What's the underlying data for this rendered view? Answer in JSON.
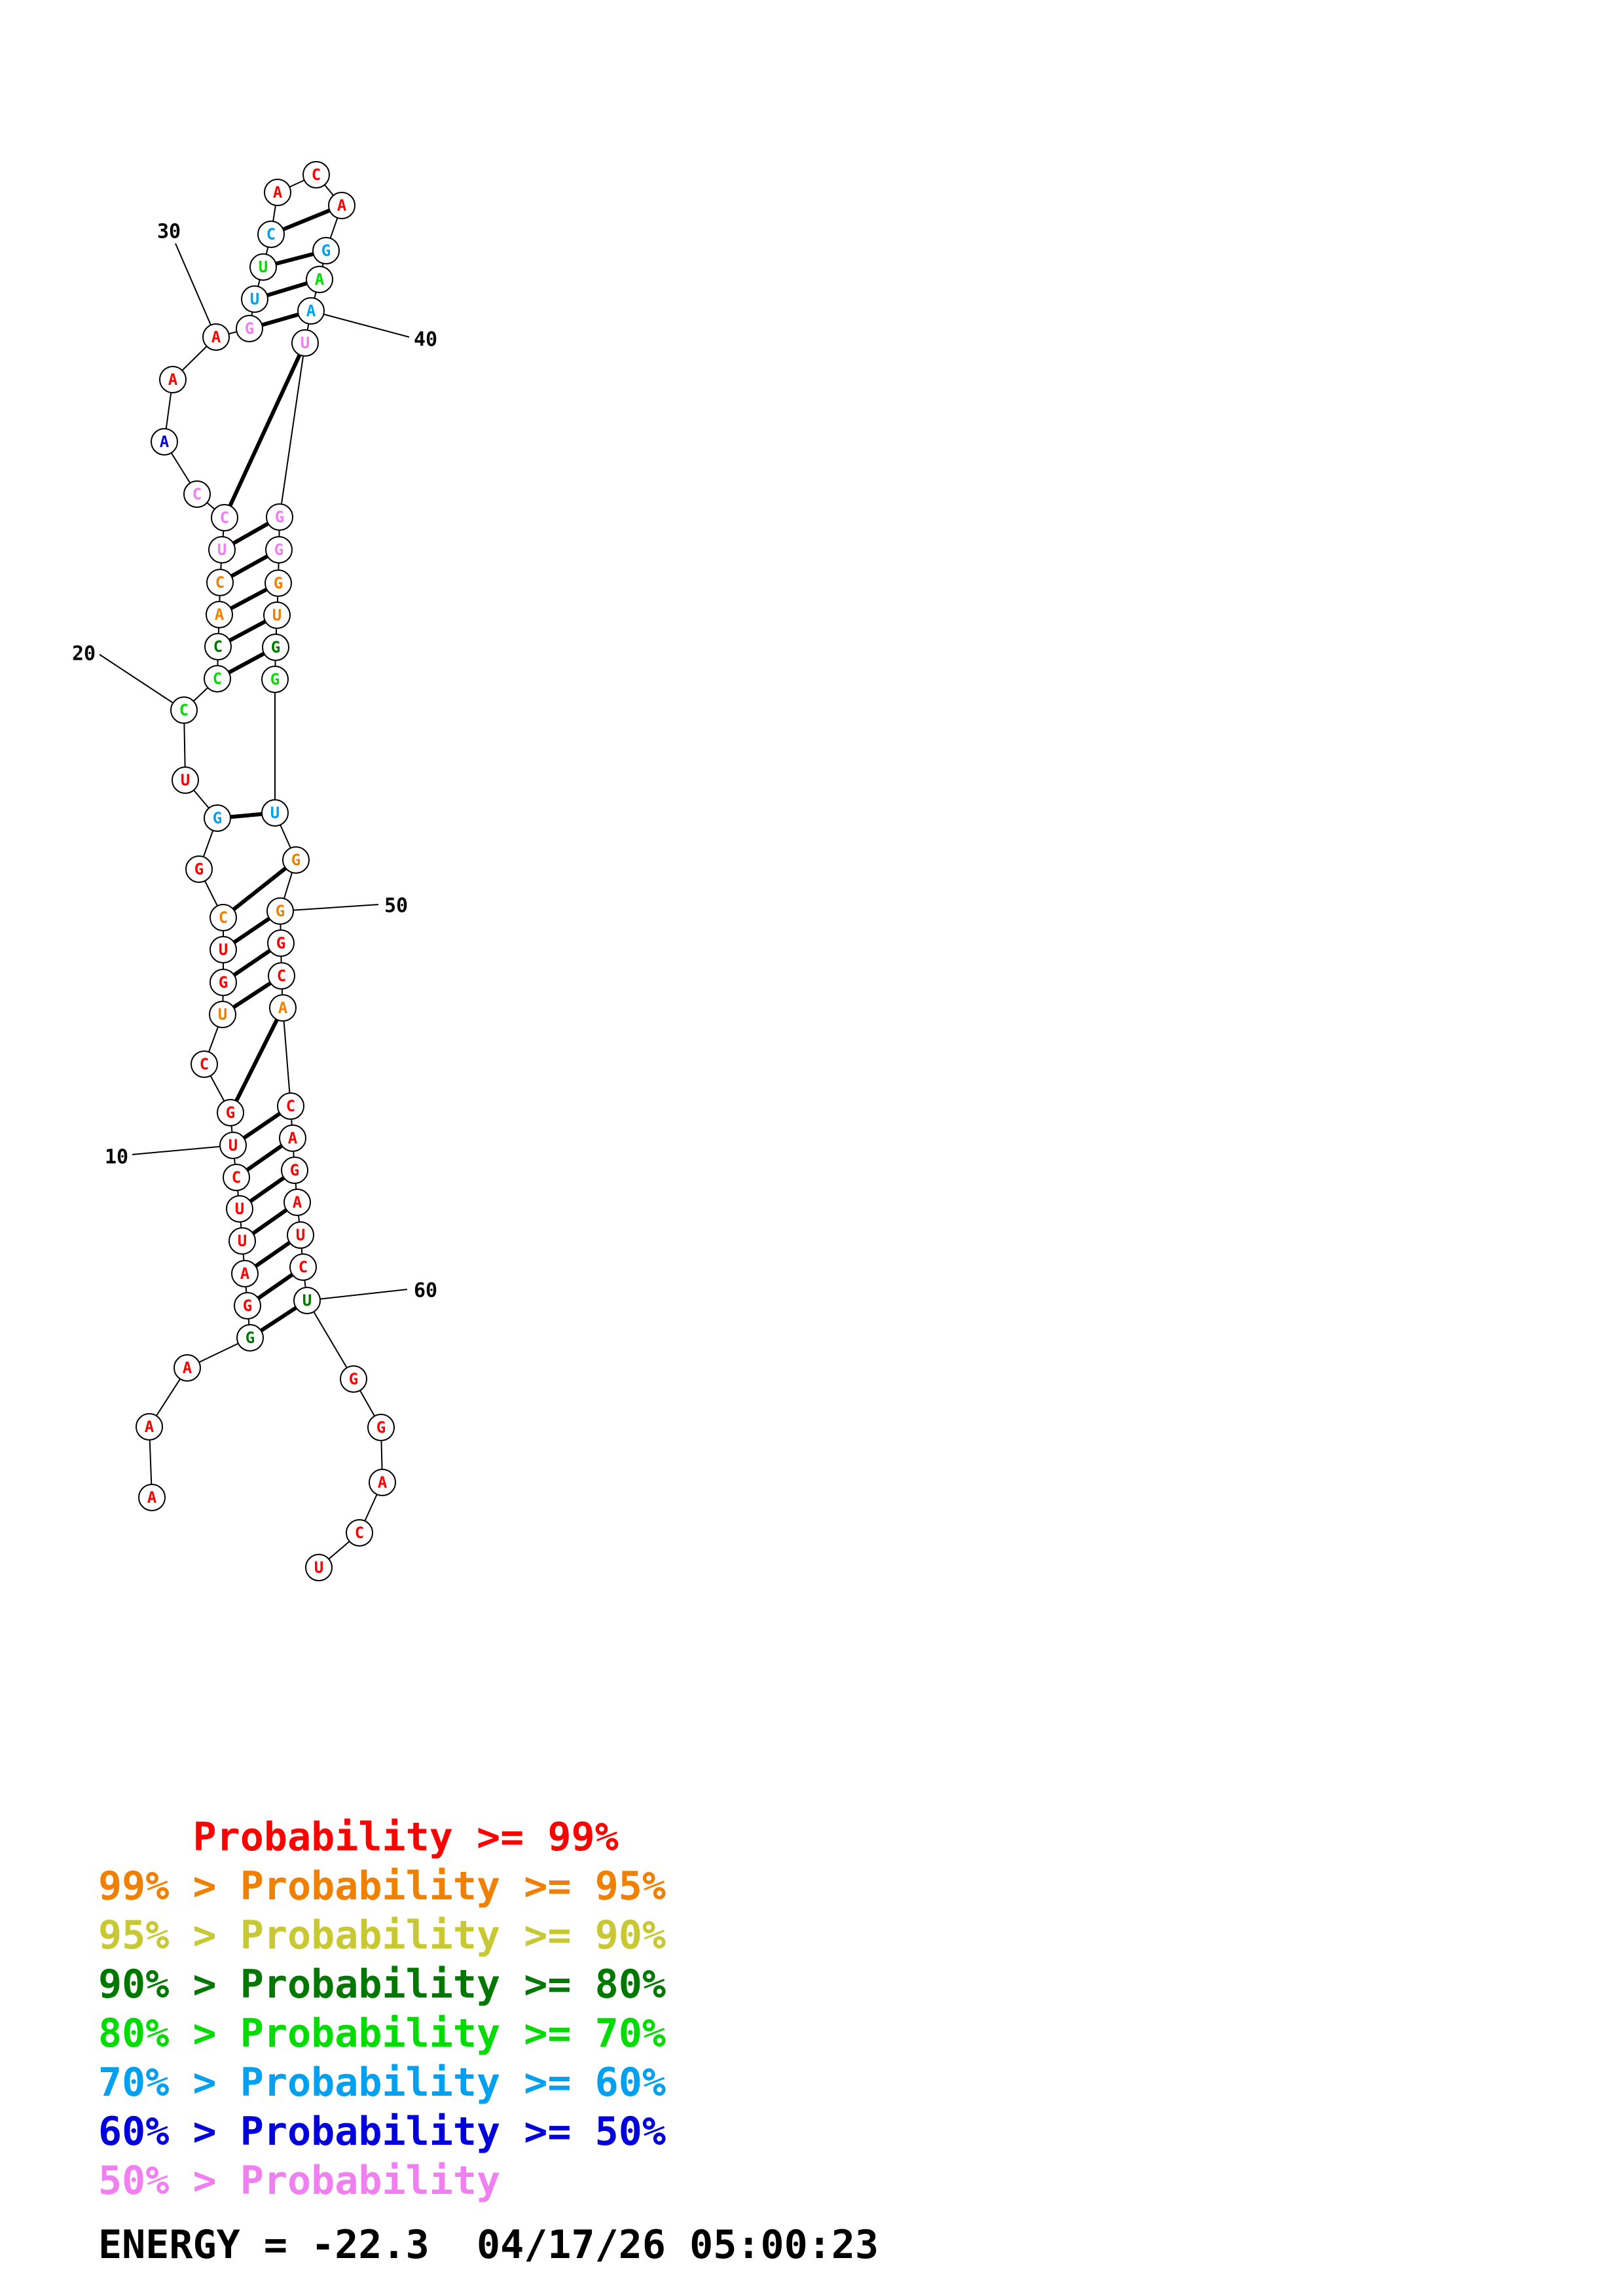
{
  "nucleotides": [
    {
      "n": 1,
      "base": "A",
      "prob": "red"
    },
    {
      "n": 2,
      "base": "A",
      "prob": "red"
    },
    {
      "n": 3,
      "base": "A",
      "prob": "red"
    },
    {
      "n": 4,
      "base": "G",
      "prob": "dkgreen"
    },
    {
      "n": 5,
      "base": "G",
      "prob": "red"
    },
    {
      "n": 6,
      "base": "A",
      "prob": "red"
    },
    {
      "n": 7,
      "base": "U",
      "prob": "red"
    },
    {
      "n": 8,
      "base": "U",
      "prob": "red"
    },
    {
      "n": 9,
      "base": "C",
      "prob": "red"
    },
    {
      "n": 10,
      "base": "U",
      "prob": "red"
    },
    {
      "n": 11,
      "base": "G",
      "prob": "red"
    },
    {
      "n": 12,
      "base": "C",
      "prob": "red"
    },
    {
      "n": 13,
      "base": "U",
      "prob": "orange"
    },
    {
      "n": 14,
      "base": "G",
      "prob": "red"
    },
    {
      "n": 15,
      "base": "U",
      "prob": "red"
    },
    {
      "n": 16,
      "base": "C",
      "prob": "orange"
    },
    {
      "n": 17,
      "base": "G",
      "prob": "red"
    },
    {
      "n": 18,
      "base": "G",
      "prob": "lblue"
    },
    {
      "n": 19,
      "base": "U",
      "prob": "red"
    },
    {
      "n": 20,
      "base": "C",
      "prob": "green"
    },
    {
      "n": 21,
      "base": "C",
      "prob": "green"
    },
    {
      "n": 22,
      "base": "C",
      "prob": "dkgreen"
    },
    {
      "n": 23,
      "base": "A",
      "prob": "orange"
    },
    {
      "n": 24,
      "base": "C",
      "prob": "orange"
    },
    {
      "n": 25,
      "base": "U",
      "prob": "pink"
    },
    {
      "n": 26,
      "base": "C",
      "prob": "pink"
    },
    {
      "n": 27,
      "base": "C",
      "prob": "pink"
    },
    {
      "n": 28,
      "base": "A",
      "prob": "blue"
    },
    {
      "n": 29,
      "base": "A",
      "prob": "red"
    },
    {
      "n": 30,
      "base": "A",
      "prob": "red"
    },
    {
      "n": 31,
      "base": "G",
      "prob": "pink"
    },
    {
      "n": 32,
      "base": "U",
      "prob": "lblue"
    },
    {
      "n": 33,
      "base": "U",
      "prob": "green"
    },
    {
      "n": 34,
      "base": "C",
      "prob": "lblue"
    },
    {
      "n": 35,
      "base": "A",
      "prob": "red"
    },
    {
      "n": 36,
      "base": "C",
      "prob": "red"
    },
    {
      "n": 37,
      "base": "A",
      "prob": "red"
    },
    {
      "n": 38,
      "base": "G",
      "prob": "lblue"
    },
    {
      "n": 39,
      "base": "A",
      "prob": "green"
    },
    {
      "n": 40,
      "base": "A",
      "prob": "lblue"
    },
    {
      "n": 41,
      "base": "U",
      "prob": "pink"
    },
    {
      "n": 42,
      "base": "G",
      "prob": "pink"
    },
    {
      "n": 43,
      "base": "G",
      "prob": "pink"
    },
    {
      "n": 44,
      "base": "G",
      "prob": "orange"
    },
    {
      "n": 45,
      "base": "U",
      "prob": "orange"
    },
    {
      "n": 46,
      "base": "G",
      "prob": "dkgreen"
    },
    {
      "n": 47,
      "base": "G",
      "prob": "green"
    },
    {
      "n": 48,
      "base": "U",
      "prob": "lblue"
    },
    {
      "n": 49,
      "base": "G",
      "prob": "orange"
    },
    {
      "n": 50,
      "base": "G",
      "prob": "orange"
    },
    {
      "n": 51,
      "base": "G",
      "prob": "red"
    },
    {
      "n": 52,
      "base": "C",
      "prob": "red"
    },
    {
      "n": 53,
      "base": "A",
      "prob": "orange"
    },
    {
      "n": 54,
      "base": "C",
      "prob": "red"
    },
    {
      "n": 55,
      "base": "A",
      "prob": "red"
    },
    {
      "n": 56,
      "base": "G",
      "prob": "red"
    },
    {
      "n": 57,
      "base": "A",
      "prob": "red"
    },
    {
      "n": 58,
      "base": "U",
      "prob": "red"
    },
    {
      "n": 59,
      "base": "C",
      "prob": "red"
    },
    {
      "n": 60,
      "base": "U",
      "prob": "dkgreen"
    },
    {
      "n": 61,
      "base": "G",
      "prob": "red"
    },
    {
      "n": 62,
      "base": "G",
      "prob": "red"
    },
    {
      "n": 63,
      "base": "A",
      "prob": "red"
    },
    {
      "n": 64,
      "base": "C",
      "prob": "red"
    },
    {
      "n": 65,
      "base": "U",
      "prob": "red"
    }
  ],
  "pairs": [
    [
      4,
      60
    ],
    [
      5,
      59
    ],
    [
      6,
      58
    ],
    [
      7,
      57
    ],
    [
      8,
      56
    ],
    [
      9,
      55
    ],
    [
      10,
      54
    ],
    [
      11,
      53
    ],
    [
      13,
      52
    ],
    [
      14,
      51
    ],
    [
      15,
      50
    ],
    [
      16,
      49
    ],
    [
      18,
      48
    ],
    [
      21,
      46
    ],
    [
      22,
      45
    ],
    [
      23,
      44
    ],
    [
      24,
      43
    ],
    [
      25,
      42
    ],
    [
      26,
      41
    ],
    [
      31,
      40
    ],
    [
      32,
      39
    ],
    [
      33,
      38
    ],
    [
      34,
      37
    ]
  ],
  "position_labels": [
    {
      "n": 10,
      "text": "10"
    },
    {
      "n": 20,
      "text": "20"
    },
    {
      "n": 30,
      "text": "30"
    },
    {
      "n": 40,
      "text": "40"
    },
    {
      "n": 50,
      "text": "50"
    },
    {
      "n": 60,
      "text": "60"
    }
  ],
  "colors": {
    "red": "#ff0000",
    "orange": "#f08000",
    "yellow": "#c8c832",
    "dkgreen": "#007800",
    "green": "#00dc00",
    "lblue": "#00a0f0",
    "blue": "#0000dc",
    "pink": "#f080f0"
  },
  "legend": [
    {
      "prefix": "    ",
      "label": "Probability >= 99%",
      "prob": "red"
    },
    {
      "prefix": "99% > ",
      "label": "Probability >= 95%",
      "prob": "orange"
    },
    {
      "prefix": "95% > ",
      "label": "Probability >= 90%",
      "prob": "yellow"
    },
    {
      "prefix": "90% > ",
      "label": "Probability >= 80%",
      "prob": "dkgreen"
    },
    {
      "prefix": "80% > ",
      "label": "Probability >= 70%",
      "prob": "green"
    },
    {
      "prefix": "70% > ",
      "label": "Probability >= 60%",
      "prob": "lblue"
    },
    {
      "prefix": "60% > ",
      "label": "Probability >= 50%",
      "prob": "blue"
    },
    {
      "prefix": "50% > ",
      "label": "Probability",
      "prob": "pink"
    }
  ],
  "energy_line": "ENERGY = -22.3  04/17/26 05:00:23"
}
